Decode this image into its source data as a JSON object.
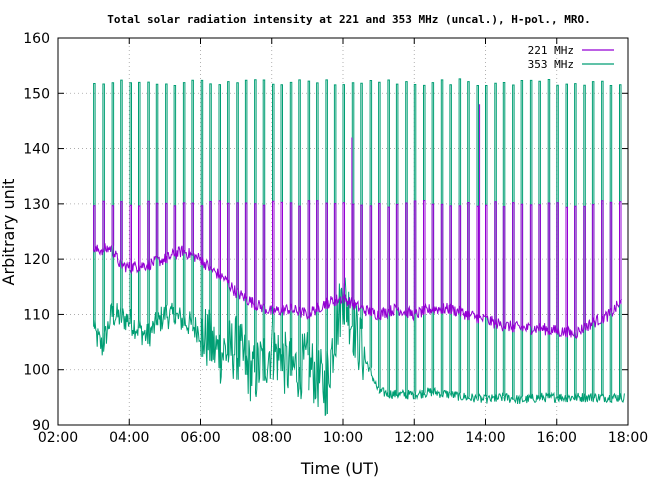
{
  "chart_data": {
    "type": "line",
    "title": "Total solar radiation intensity at 221 and 353 MHz (uncal.), H-pol., MRO.",
    "xlabel": "Time (UT)",
    "ylabel": "Arbitrary unit",
    "xlim": [
      "02:00",
      "18:00"
    ],
    "ylim": [
      90,
      160
    ],
    "x_ticks": [
      "02:00",
      "04:00",
      "06:00",
      "08:00",
      "10:00",
      "12:00",
      "14:00",
      "16:00",
      "18:00"
    ],
    "y_ticks": [
      90,
      100,
      110,
      120,
      130,
      140,
      150,
      160
    ],
    "grid": true,
    "legend_position": "top-right",
    "series": [
      {
        "name": "221 MHz",
        "color": "#9400d3",
        "baseline": [
          [
            "03:00",
            121.5
          ],
          [
            "03:30",
            122
          ],
          [
            "03:45",
            119
          ],
          [
            "04:00",
            118.5
          ],
          [
            "04:30",
            119
          ],
          [
            "05:00",
            120
          ],
          [
            "05:30",
            121.5
          ],
          [
            "06:00",
            120
          ],
          [
            "06:20",
            118
          ],
          [
            "06:40",
            116.5
          ],
          [
            "07:00",
            114
          ],
          [
            "07:30",
            112
          ],
          [
            "08:00",
            110.5
          ],
          [
            "08:30",
            111
          ],
          [
            "09:00",
            110
          ],
          [
            "09:30",
            112
          ],
          [
            "10:00",
            113
          ],
          [
            "10:30",
            111
          ],
          [
            "11:00",
            110
          ],
          [
            "11:30",
            111
          ],
          [
            "12:00",
            110
          ],
          [
            "12:30",
            111
          ],
          [
            "13:00",
            111
          ],
          [
            "13:30",
            110
          ],
          [
            "14:00",
            109
          ],
          [
            "14:30",
            108
          ],
          [
            "15:00",
            107.5
          ],
          [
            "15:30",
            107.5
          ],
          [
            "16:00",
            107
          ],
          [
            "16:30",
            106.5
          ],
          [
            "17:00",
            108.5
          ],
          [
            "17:30",
            110
          ],
          [
            "17:50",
            112.5
          ]
        ],
        "spike_level": 130,
        "spike_interval_minutes": 15,
        "outlier_peaks": [
          [
            "13:50",
            148
          ],
          [
            "10:15",
            142
          ]
        ]
      },
      {
        "name": "353 MHz",
        "color": "#009e73",
        "baseline": [
          [
            "03:00",
            107
          ],
          [
            "03:15",
            104
          ],
          [
            "03:30",
            110
          ],
          [
            "04:00",
            109
          ],
          [
            "04:30",
            106
          ],
          [
            "05:00",
            110
          ],
          [
            "05:30",
            109
          ],
          [
            "06:00",
            107
          ],
          [
            "06:30",
            103
          ],
          [
            "07:00",
            104
          ],
          [
            "07:30",
            99
          ],
          [
            "08:00",
            104
          ],
          [
            "08:30",
            100
          ],
          [
            "09:00",
            101
          ],
          [
            "09:30",
            97
          ],
          [
            "10:00",
            114
          ],
          [
            "10:30",
            104
          ],
          [
            "11:00",
            96
          ],
          [
            "11:30",
            95.5
          ],
          [
            "12:00",
            95.5
          ],
          [
            "12:30",
            96
          ],
          [
            "13:00",
            95.5
          ],
          [
            "13:30",
            95
          ],
          [
            "14:00",
            94.5
          ],
          [
            "14:30",
            95
          ],
          [
            "15:00",
            94.5
          ],
          [
            "15:30",
            95
          ],
          [
            "16:00",
            95
          ],
          [
            "16:30",
            95
          ],
          [
            "17:00",
            95
          ],
          [
            "17:30",
            95
          ],
          [
            "17:55",
            95
          ]
        ],
        "spike_level": 152,
        "spike_interval_minutes": 15
      }
    ]
  }
}
